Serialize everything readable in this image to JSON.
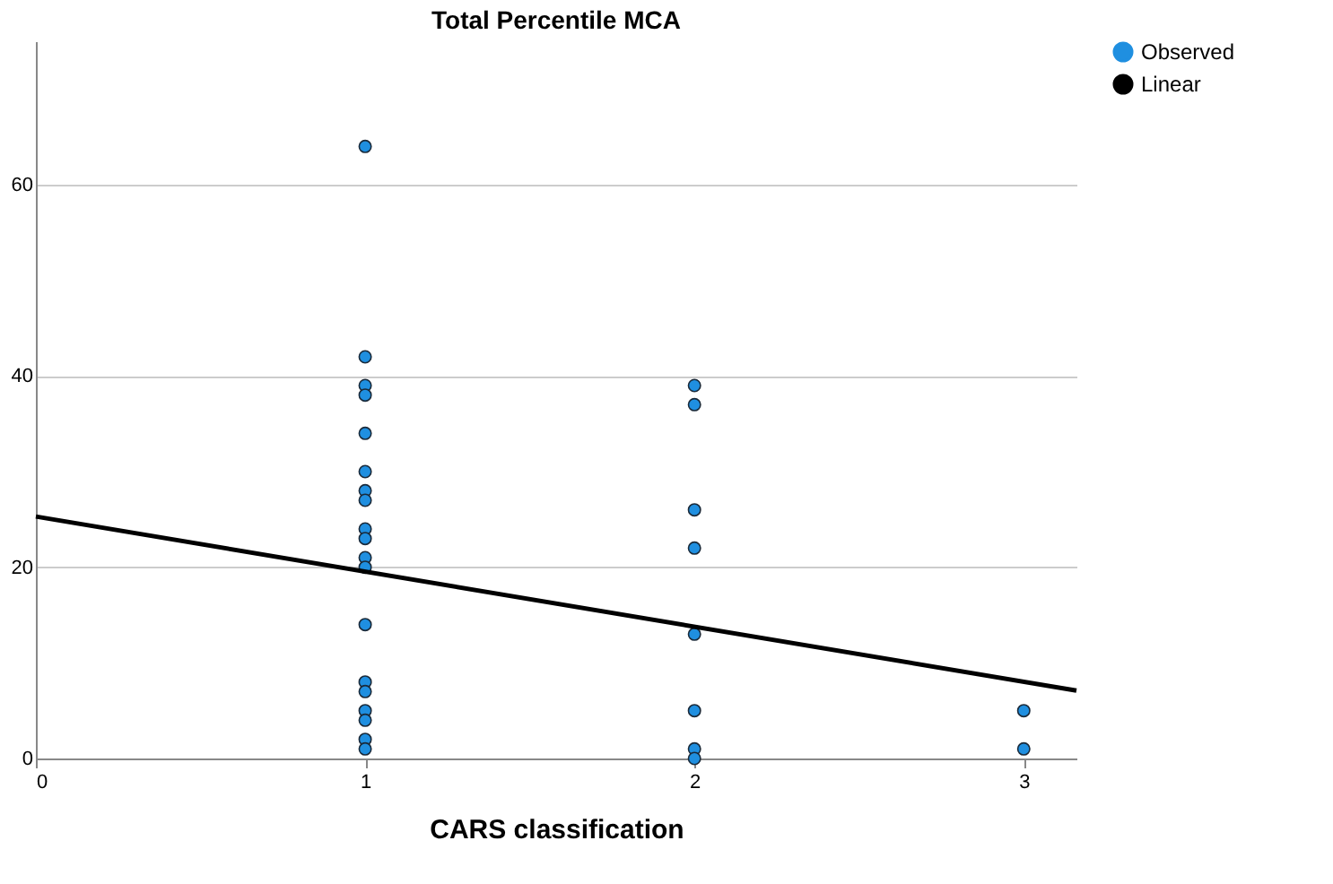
{
  "chart_data": {
    "type": "scatter",
    "title": "Total Percentile MCA",
    "xlabel": "CARS classification",
    "series": [
      {
        "name": "Observed",
        "color": "#1f8fe0",
        "marker": "circle",
        "x": [
          1,
          1,
          1,
          1,
          1,
          1,
          1,
          1,
          1,
          1,
          1,
          1,
          1,
          1,
          1,
          1,
          1,
          1,
          1,
          2,
          2,
          2,
          2,
          2,
          2,
          2,
          2,
          3,
          3
        ],
        "values": [
          64,
          42,
          39,
          38,
          34,
          30,
          28,
          27,
          24,
          23,
          21,
          20,
          14,
          8,
          7,
          5,
          4,
          2,
          1,
          39,
          37,
          26,
          22,
          13,
          5,
          1,
          0,
          5,
          1
        ]
      },
      {
        "name": "Linear",
        "type": "line",
        "color": "#000000",
        "line_style": "solid",
        "x": [
          0,
          3.16
        ],
        "values": [
          25.3,
          7.1
        ]
      }
    ],
    "xlim": [
      0,
      3.16
    ],
    "xticks": [
      0,
      1,
      2,
      3
    ],
    "ylim": [
      0,
      75
    ],
    "yticks": [
      0,
      20,
      40,
      60
    ],
    "grid": "y",
    "legend": "top right"
  }
}
